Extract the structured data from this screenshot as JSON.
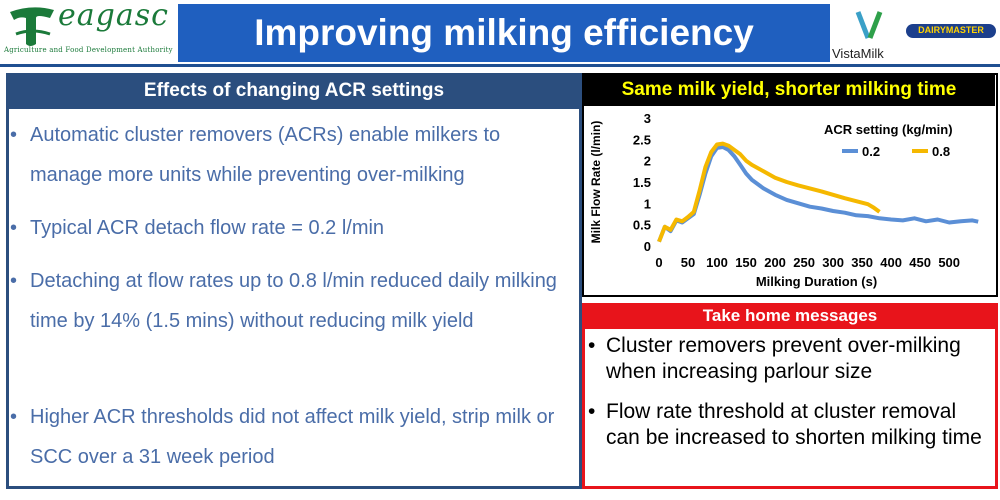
{
  "header": {
    "logo_text": "eagasc",
    "logo_sub": "Agriculture and Food Development Authority",
    "title": "Improving milking efficiency",
    "partner1": "VistaMilk",
    "partner2": "DAIRYMASTER"
  },
  "left": {
    "heading": "Effects of changing ACR settings",
    "bullets": [
      "Automatic cluster removers (ACRs) enable milkers to manage more units while preventing over-milking",
      "Typical ACR detach flow rate = 0.2 l/min",
      "Detaching at flow rates up to 0.8 l/min reduced daily milking time by 14% (1.5 mins) without reducing milk yield",
      "Higher ACR thresholds did not affect milk yield, strip milk or SCC over a 31 week period"
    ]
  },
  "take_home": {
    "heading": "Take home messages",
    "bullets": [
      "Cluster removers prevent over-milking when increasing parlour size",
      "Flow rate threshold at cluster removal can be increased to shorten milking time"
    ]
  },
  "colors": {
    "title_bg": "#1f5fbf",
    "left_accent": "#2b4e7e",
    "left_text": "#4a6da8",
    "red": "#e8141b",
    "series_02": "#5b8fd6",
    "series_08": "#f5b800"
  },
  "chart_data": {
    "type": "line",
    "title": "Same milk yield, shorter milking time",
    "xlabel": "Milking Duration (s)",
    "ylabel": "Milk Flow Rate (l/min)",
    "xlim": [
      0,
      560
    ],
    "ylim": [
      0,
      3
    ],
    "xticks": [
      0,
      50,
      100,
      150,
      200,
      250,
      300,
      350,
      400,
      450,
      500
    ],
    "yticks": [
      0,
      0.5,
      1,
      1.5,
      2,
      2.5,
      3
    ],
    "legend_title": "ACR setting (kg/min)",
    "series": [
      {
        "name": "0.2",
        "color": "#5b8fd6",
        "x": [
          0,
          10,
          20,
          30,
          40,
          50,
          60,
          70,
          80,
          90,
          100,
          110,
          120,
          130,
          140,
          150,
          160,
          180,
          200,
          220,
          240,
          260,
          280,
          300,
          320,
          340,
          360,
          380,
          400,
          420,
          440,
          460,
          480,
          500,
          520,
          540,
          550
        ],
        "y": [
          0.1,
          0.45,
          0.35,
          0.6,
          0.55,
          0.65,
          0.75,
          1.2,
          1.7,
          2.1,
          2.3,
          2.32,
          2.25,
          2.1,
          1.9,
          1.7,
          1.55,
          1.35,
          1.2,
          1.08,
          1.0,
          0.92,
          0.88,
          0.82,
          0.78,
          0.72,
          0.7,
          0.65,
          0.62,
          0.6,
          0.65,
          0.58,
          0.62,
          0.55,
          0.58,
          0.6,
          0.57
        ]
      },
      {
        "name": "0.8",
        "color": "#f5b800",
        "x": [
          0,
          10,
          20,
          30,
          40,
          50,
          60,
          70,
          80,
          90,
          100,
          110,
          120,
          130,
          140,
          150,
          160,
          180,
          200,
          220,
          240,
          260,
          280,
          300,
          320,
          340,
          360,
          370,
          380
        ],
        "y": [
          0.1,
          0.45,
          0.38,
          0.62,
          0.58,
          0.68,
          0.8,
          1.3,
          1.85,
          2.2,
          2.38,
          2.4,
          2.35,
          2.25,
          2.15,
          2.0,
          1.9,
          1.75,
          1.6,
          1.5,
          1.42,
          1.35,
          1.28,
          1.2,
          1.12,
          1.05,
          0.98,
          0.9,
          0.8
        ]
      }
    ]
  }
}
